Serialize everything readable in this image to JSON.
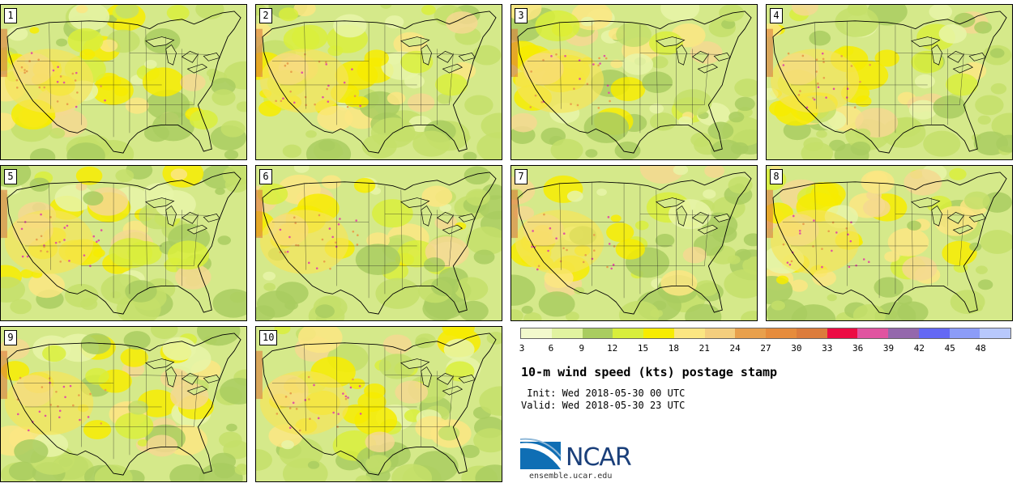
{
  "panels": [
    {
      "label": "1"
    },
    {
      "label": "2"
    },
    {
      "label": "3"
    },
    {
      "label": "4"
    },
    {
      "label": "5"
    },
    {
      "label": "6"
    },
    {
      "label": "7"
    },
    {
      "label": "8"
    },
    {
      "label": "9"
    },
    {
      "label": "10"
    }
  ],
  "colorbar": {
    "colors": [
      "#f2f9cc",
      "#e1f3a0",
      "#a9cc60",
      "#d8ee3c",
      "#f7ec00",
      "#fbe682",
      "#f4ce7e",
      "#e8a04c",
      "#e68c3c",
      "#dc7c3c",
      "#ec0c44",
      "#e054a0",
      "#9468ac",
      "#6468f4",
      "#8c9cf8",
      "#b8c8fc"
    ],
    "ticks": [
      "3",
      "6",
      "9",
      "12",
      "15",
      "18",
      "21",
      "24",
      "27",
      "30",
      "33",
      "36",
      "39",
      "42",
      "45",
      "48"
    ]
  },
  "title": "10-m wind speed (kts) postage stamp",
  "init": " Init: Wed 2018-05-30 00 UTC",
  "valid": "Valid: Wed 2018-05-30 23 UTC",
  "logo": {
    "name": "NCAR",
    "url": "ensemble.ucar.edu"
  }
}
